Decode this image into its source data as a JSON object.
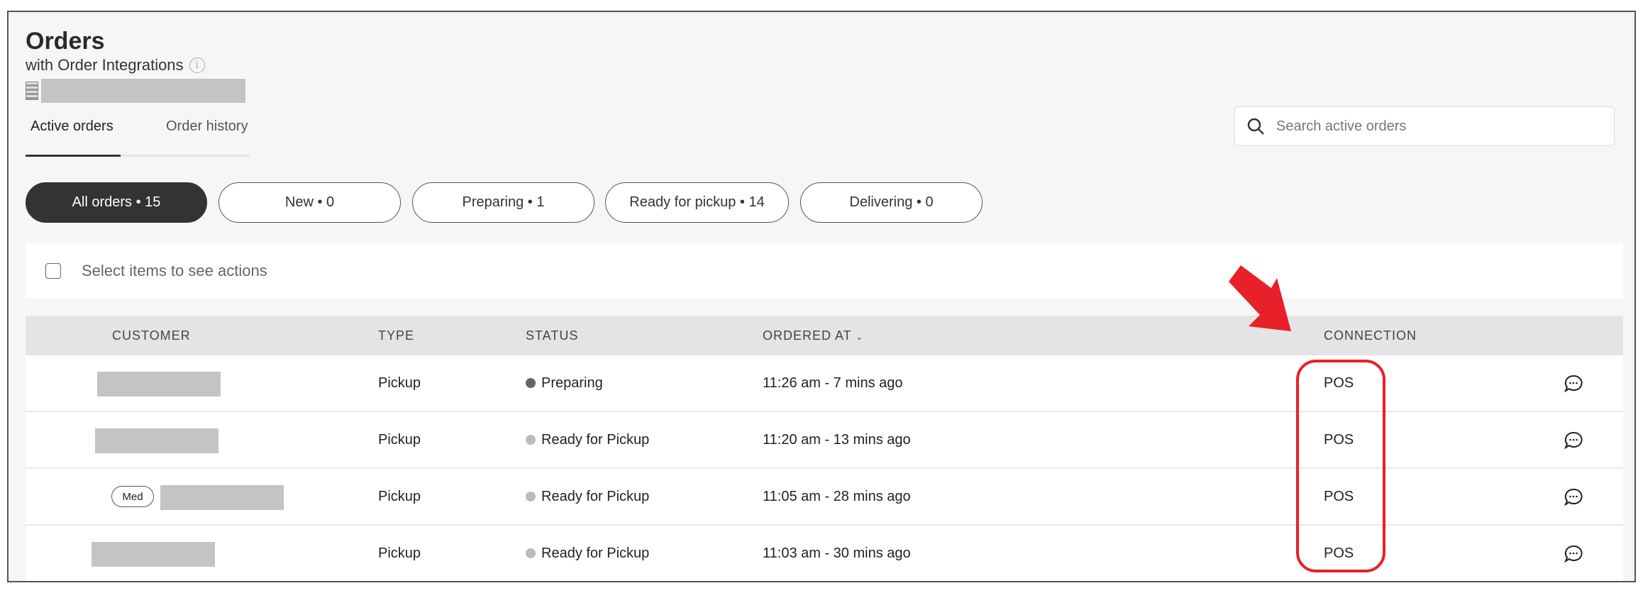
{
  "header": {
    "title": "Orders",
    "subtitle": "with Order Integrations",
    "info_icon": "info-icon",
    "store_icon": "building-icon"
  },
  "tabs": [
    {
      "label": "Active orders",
      "active": true
    },
    {
      "label": "Order history",
      "active": false
    }
  ],
  "search": {
    "placeholder": "Search active orders",
    "value": ""
  },
  "filters": [
    {
      "label": "All orders • 15",
      "active": true
    },
    {
      "label": "New • 0",
      "active": false
    },
    {
      "label": "Preparing • 1",
      "active": false
    },
    {
      "label": "Ready for pickup • 14",
      "active": false
    },
    {
      "label": "Delivering • 0",
      "active": false
    }
  ],
  "selection": {
    "label": "Select items to see actions"
  },
  "table": {
    "columns": {
      "customer": "CUSTOMER",
      "type": "TYPE",
      "status": "STATUS",
      "ordered_at": "ORDERED AT",
      "connection": "CONNECTION"
    },
    "sort_indicator": "chevron-down-icon",
    "rows": [
      {
        "badge": "",
        "type": "Pickup",
        "status": "Preparing",
        "status_color": "#666666",
        "ordered_at": "11:26 am - 7 mins ago",
        "connection": "POS"
      },
      {
        "badge": "",
        "type": "Pickup",
        "status": "Ready for Pickup",
        "status_color": "#bbbbbb",
        "ordered_at": "11:20 am - 13 mins ago",
        "connection": "POS"
      },
      {
        "badge": "Med",
        "type": "Pickup",
        "status": "Ready for Pickup",
        "status_color": "#bbbbbb",
        "ordered_at": "11:05 am - 28 mins ago",
        "connection": "POS"
      },
      {
        "badge": "",
        "type": "Pickup",
        "status": "Ready for Pickup",
        "status_color": "#bbbbbb",
        "ordered_at": "11:03 am - 30 mins ago",
        "connection": "POS"
      }
    ]
  },
  "annotation": {
    "color": "#e8202a",
    "arrow_icon": "red-arrow",
    "highlight": "connection-column"
  }
}
